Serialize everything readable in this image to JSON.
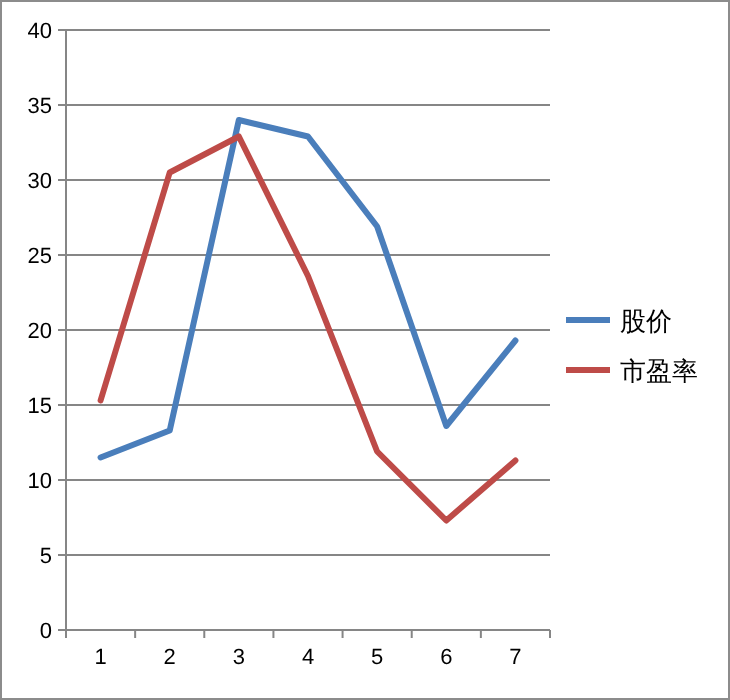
{
  "chart_data": {
    "type": "line",
    "categories": [
      "1",
      "2",
      "3",
      "4",
      "5",
      "6",
      "7"
    ],
    "series": [
      {
        "name": "股价",
        "color": "#4a7ebb",
        "values": [
          11.5,
          13.3,
          34,
          32.9,
          26.9,
          13.6,
          19.3
        ]
      },
      {
        "name": "市盈率",
        "color": "#be4b48",
        "values": [
          15.3,
          30.5,
          32.9,
          23.6,
          11.9,
          7.3,
          11.3
        ]
      }
    ],
    "ylim": [
      0,
      40
    ],
    "yticks": [
      0,
      5,
      10,
      15,
      20,
      25,
      30,
      35,
      40
    ],
    "grid": "y",
    "legend": "right",
    "marker": "none",
    "line_style": "solid"
  }
}
